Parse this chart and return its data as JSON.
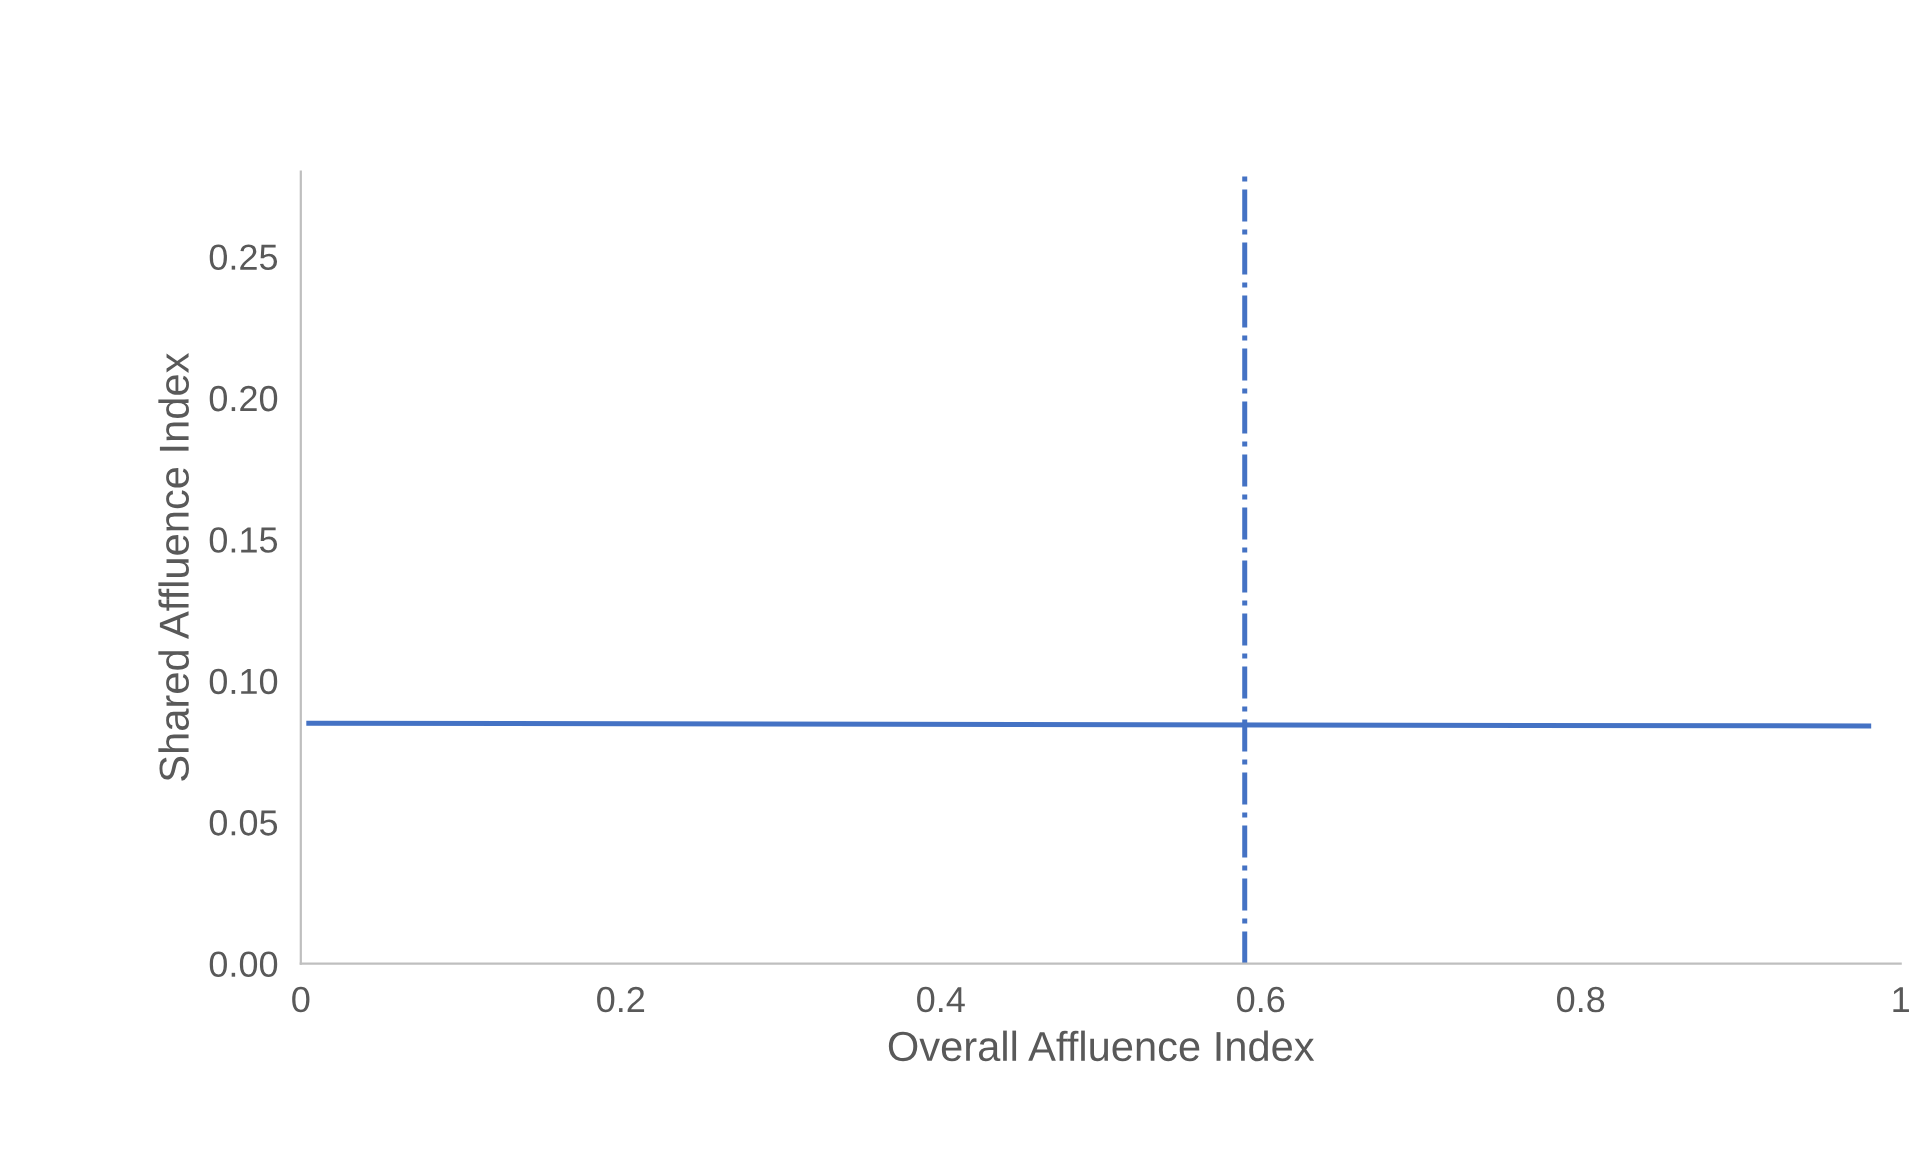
{
  "chart_data": {
    "type": "line",
    "xlabel": "Overall Affluence Index",
    "ylabel": "Shared Affluence Index",
    "series": [
      {
        "color": "#4472c4",
        "x": [
          0.005,
          0.98
        ],
        "values": [
          0.085,
          0.084
        ]
      }
    ],
    "xlim": [
      0,
      1
    ],
    "xticks": [
      0,
      {
        "value": 0.2,
        "label": "0.2"
      },
      {
        "value": 0.4,
        "label": "0.4"
      },
      {
        "value": 0.6,
        "label": "0.6"
      },
      {
        "value": 0.8,
        "label": "0.8"
      },
      1
    ],
    "ylim": [
      0,
      0.28
    ],
    "yticks": [
      {
        "value": 0,
        "label": "0.00"
      },
      {
        "value": 0.05,
        "label": "0.05"
      },
      {
        "value": 0.1,
        "label": "0.10"
      },
      {
        "value": 0.15,
        "label": "0.15"
      },
      {
        "value": 0.2,
        "label": "0.20"
      },
      {
        "value": 0.25,
        "label": "0.25"
      }
    ],
    "ref_lines": [
      {
        "axis": "x",
        "value": 0.59,
        "color": "#4472c4",
        "line_style": "dashdot"
      }
    ],
    "grid": false,
    "legend": false,
    "marker": "none",
    "line_style": "solid"
  }
}
